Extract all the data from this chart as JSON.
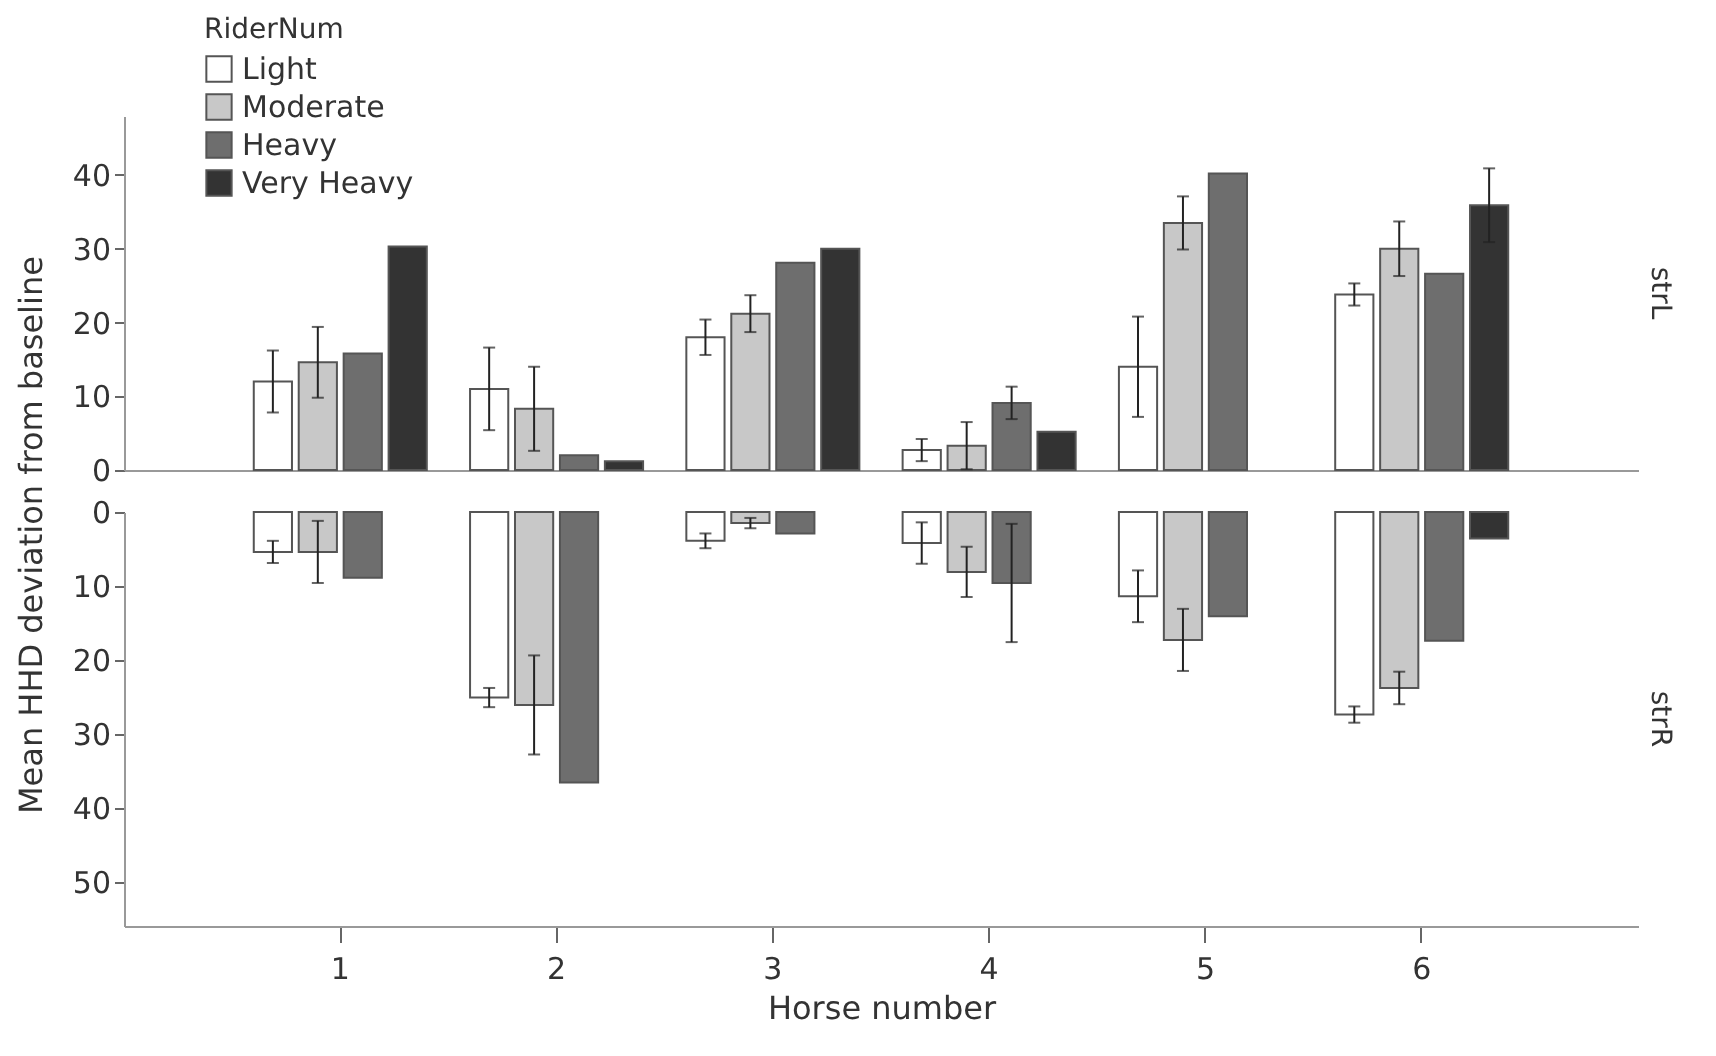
{
  "chart_data": [
    {
      "type": "bar",
      "legend_title": "RiderNum",
      "ylabel": "Mean HHD deviation from baseline",
      "annotations": [
        "strL"
      ],
      "categories": [
        "1",
        "2",
        "3",
        "4",
        "5",
        "6"
      ],
      "ylim": [
        0,
        48
      ],
      "yticks": [
        0,
        10,
        20,
        30,
        40
      ],
      "tick_labels": "y",
      "legend": "top left",
      "grid": false,
      "series": [
        {
          "name": "Light",
          "color": "#ffffff",
          "values": [
            12,
            11,
            18,
            2.7,
            14,
            23.8
          ],
          "errors": [
            4.2,
            5.6,
            2.4,
            1.5,
            6.8,
            1.5
          ]
        },
        {
          "name": "Moderate",
          "color": "#c8c8c8",
          "values": [
            14.6,
            8.3,
            21.2,
            3.3,
            33.5,
            30
          ],
          "errors": [
            4.8,
            5.7,
            2.5,
            3.2,
            3.6,
            3.7
          ]
        },
        {
          "name": "Heavy",
          "color": "#6e6e6e",
          "values": [
            15.8,
            2,
            28.1,
            9.1,
            40.2,
            26.6
          ],
          "errors": [
            null,
            null,
            null,
            2.2,
            null,
            null
          ]
        },
        {
          "name": "Very Heavy",
          "color": "#333333",
          "values": [
            30.3,
            1.2,
            30,
            5.2,
            null,
            35.9
          ],
          "errors": [
            null,
            null,
            null,
            null,
            null,
            5
          ]
        }
      ]
    },
    {
      "type": "bar",
      "xlabel": "Horse number",
      "annotations": [
        "strR"
      ],
      "categories": [
        "1",
        "2",
        "3",
        "4",
        "5",
        "6"
      ],
      "ylim": [
        56,
        0
      ],
      "yticks": [
        0,
        10,
        20,
        30,
        40,
        50
      ],
      "grid": false,
      "series": [
        {
          "color": "#ffffff",
          "values": [
            5.4,
            25.1,
            3.9,
            4.2,
            11.4,
            27.4
          ],
          "errors": [
            1.5,
            1.3,
            1,
            2.8,
            3.5,
            1.1
          ]
        },
        {
          "color": "#c8c8c8",
          "values": [
            5.4,
            26.1,
            1.5,
            8.1,
            17.3,
            23.8
          ],
          "errors": [
            4.2,
            6.7,
            0.7,
            3.4,
            4.2,
            2.2
          ]
        },
        {
          "color": "#6e6e6e",
          "values": [
            8.9,
            36.6,
            2.9,
            9.6,
            14.1,
            17.4
          ],
          "errors": [
            null,
            null,
            null,
            8,
            null,
            null
          ]
        },
        {
          "color": "#333333",
          "values": [
            null,
            null,
            null,
            null,
            null,
            3.6
          ],
          "errors": [
            null,
            null,
            null,
            null,
            null,
            null
          ]
        }
      ]
    }
  ]
}
